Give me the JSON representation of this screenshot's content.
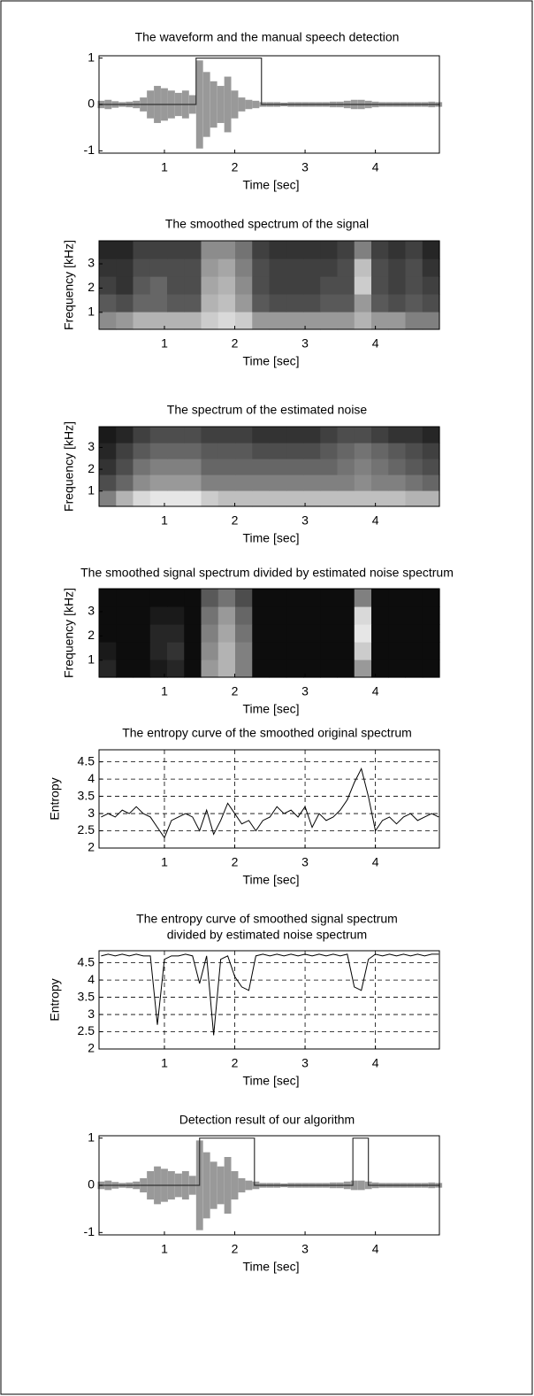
{
  "chart_data": [
    {
      "type": "waveform",
      "title": "The waveform and the manual speech detection",
      "xlabel": "Time [sec]",
      "xlim": [
        0.07,
        4.91
      ],
      "ylim": [
        -1.05,
        1.05
      ],
      "xticks": [
        1,
        2,
        3,
        4
      ],
      "yticks": [
        -1,
        0,
        1
      ],
      "x": [
        0.1,
        0.2,
        0.3,
        0.4,
        0.5,
        0.6,
        0.7,
        0.8,
        0.9,
        1.0,
        1.1,
        1.2,
        1.3,
        1.4,
        1.5,
        1.6,
        1.7,
        1.8,
        1.9,
        2.0,
        2.1,
        2.2,
        2.3,
        2.4,
        2.5,
        2.6,
        2.7,
        2.8,
        2.9,
        3.0,
        3.1,
        3.2,
        3.3,
        3.4,
        3.5,
        3.6,
        3.7,
        3.8,
        3.9,
        4.0,
        4.1,
        4.2,
        4.3,
        4.4,
        4.5,
        4.6,
        4.7,
        4.8,
        4.9
      ],
      "envelope": [
        0.08,
        0.1,
        0.07,
        0.05,
        0.06,
        0.08,
        0.15,
        0.3,
        0.4,
        0.35,
        0.3,
        0.25,
        0.3,
        0.2,
        0.95,
        0.7,
        0.5,
        0.4,
        0.6,
        0.3,
        0.15,
        0.1,
        0.08,
        0.05,
        0.05,
        0.05,
        0.04,
        0.05,
        0.05,
        0.05,
        0.05,
        0.05,
        0.05,
        0.06,
        0.06,
        0.08,
        0.1,
        0.1,
        0.08,
        0.06,
        0.05,
        0.05,
        0.05,
        0.05,
        0.05,
        0.05,
        0.05,
        0.06,
        0.05
      ],
      "envelope_color": "#999999",
      "detection": {
        "x": [
          0.07,
          1.45,
          1.45,
          2.38,
          2.38,
          4.91
        ],
        "values": [
          0,
          0,
          1,
          1,
          0,
          0
        ],
        "color": "#333333"
      }
    },
    {
      "type": "heatmap",
      "title": "The smoothed spectrum of the signal",
      "xlabel": "Time [sec]",
      "ylabel": "Frequency [kHz]",
      "xlim": [
        0.07,
        4.91
      ],
      "ylim": [
        0.3,
        3.95
      ],
      "xticks": [
        1,
        2,
        3,
        4
      ],
      "yticks": [
        1,
        2,
        3
      ],
      "colormap": "gray",
      "rows": [
        [
          0.55,
          0.6,
          0.7,
          0.7,
          0.7,
          0.7,
          0.8,
          0.85,
          0.8,
          0.6,
          0.6,
          0.6,
          0.6,
          0.6,
          0.6,
          0.7,
          0.6,
          0.6,
          0.5,
          0.5
        ],
        [
          0.35,
          0.3,
          0.4,
          0.4,
          0.35,
          0.35,
          0.7,
          0.75,
          0.6,
          0.35,
          0.3,
          0.3,
          0.3,
          0.35,
          0.35,
          0.6,
          0.35,
          0.3,
          0.35,
          0.3
        ],
        [
          0.25,
          0.2,
          0.35,
          0.4,
          0.3,
          0.3,
          0.65,
          0.7,
          0.55,
          0.3,
          0.25,
          0.25,
          0.25,
          0.3,
          0.3,
          0.8,
          0.3,
          0.25,
          0.3,
          0.25
        ],
        [
          0.2,
          0.2,
          0.3,
          0.3,
          0.3,
          0.3,
          0.6,
          0.65,
          0.5,
          0.3,
          0.25,
          0.25,
          0.25,
          0.25,
          0.3,
          0.75,
          0.3,
          0.25,
          0.3,
          0.2
        ],
        [
          0.15,
          0.15,
          0.25,
          0.25,
          0.25,
          0.25,
          0.55,
          0.55,
          0.45,
          0.25,
          0.2,
          0.2,
          0.2,
          0.2,
          0.25,
          0.5,
          0.25,
          0.2,
          0.25,
          0.15
        ]
      ]
    },
    {
      "type": "heatmap",
      "title": "The spectrum of the estimated noise",
      "xlabel": "Time [sec]",
      "ylabel": "Frequency [kHz]",
      "xlim": [
        0.07,
        4.91
      ],
      "ylim": [
        0.3,
        3.95
      ],
      "xticks": [
        1,
        2,
        3,
        4
      ],
      "yticks": [
        1,
        2,
        3
      ],
      "colormap": "gray",
      "rows": [
        [
          0.5,
          0.7,
          0.85,
          0.9,
          0.9,
          0.9,
          0.8,
          0.75,
          0.75,
          0.75,
          0.75,
          0.75,
          0.75,
          0.75,
          0.75,
          0.75,
          0.75,
          0.75,
          0.7,
          0.7
        ],
        [
          0.3,
          0.4,
          0.55,
          0.6,
          0.6,
          0.6,
          0.5,
          0.5,
          0.5,
          0.5,
          0.5,
          0.5,
          0.5,
          0.5,
          0.5,
          0.55,
          0.5,
          0.5,
          0.45,
          0.4
        ],
        [
          0.2,
          0.3,
          0.45,
          0.5,
          0.5,
          0.5,
          0.4,
          0.4,
          0.4,
          0.4,
          0.4,
          0.4,
          0.4,
          0.4,
          0.45,
          0.5,
          0.45,
          0.4,
          0.35,
          0.3
        ],
        [
          0.15,
          0.25,
          0.35,
          0.4,
          0.4,
          0.4,
          0.35,
          0.35,
          0.35,
          0.3,
          0.3,
          0.3,
          0.3,
          0.35,
          0.4,
          0.45,
          0.4,
          0.35,
          0.3,
          0.25
        ],
        [
          0.1,
          0.15,
          0.25,
          0.3,
          0.3,
          0.3,
          0.25,
          0.25,
          0.25,
          0.2,
          0.2,
          0.2,
          0.2,
          0.25,
          0.3,
          0.3,
          0.25,
          0.2,
          0.2,
          0.15
        ]
      ]
    },
    {
      "type": "heatmap",
      "title": "The smoothed signal spectrum divided by estimated noise spectrum",
      "xlabel": "Time [sec]",
      "ylabel": "Frequency [kHz]",
      "xlim": [
        0.07,
        4.91
      ],
      "ylim": [
        0.3,
        3.95
      ],
      "xticks": [
        1,
        2,
        3,
        4
      ],
      "yticks": [
        1,
        2,
        3
      ],
      "colormap": "gray",
      "rows": [
        [
          0.15,
          0.05,
          0.05,
          0.1,
          0.15,
          0.05,
          0.6,
          0.7,
          0.5,
          0.05,
          0.05,
          0.05,
          0.05,
          0.05,
          0.05,
          0.6,
          0.05,
          0.05,
          0.05,
          0.05
        ],
        [
          0.1,
          0.05,
          0.05,
          0.15,
          0.2,
          0.05,
          0.55,
          0.7,
          0.5,
          0.05,
          0.05,
          0.05,
          0.05,
          0.05,
          0.05,
          0.8,
          0.05,
          0.05,
          0.05,
          0.05
        ],
        [
          0.05,
          0.05,
          0.05,
          0.15,
          0.15,
          0.05,
          0.5,
          0.65,
          0.45,
          0.05,
          0.05,
          0.05,
          0.05,
          0.05,
          0.05,
          0.9,
          0.05,
          0.05,
          0.05,
          0.05
        ],
        [
          0.05,
          0.05,
          0.05,
          0.1,
          0.1,
          0.05,
          0.45,
          0.6,
          0.4,
          0.05,
          0.05,
          0.05,
          0.05,
          0.05,
          0.05,
          0.85,
          0.05,
          0.05,
          0.05,
          0.05
        ],
        [
          0.05,
          0.05,
          0.05,
          0.05,
          0.05,
          0.05,
          0.35,
          0.45,
          0.3,
          0.05,
          0.05,
          0.05,
          0.05,
          0.05,
          0.05,
          0.5,
          0.05,
          0.05,
          0.05,
          0.05
        ]
      ]
    },
    {
      "type": "line",
      "title": "The entropy curve of the smoothed original spectrum",
      "xlabel": "Time [sec]",
      "ylabel": "Entropy",
      "xlim": [
        0.07,
        4.91
      ],
      "ylim": [
        2,
        4.85
      ],
      "xticks": [
        1,
        2,
        3,
        4
      ],
      "yticks": [
        2,
        2.5,
        3,
        3.5,
        4,
        4.5
      ],
      "grid": true,
      "color": "#000000",
      "x": [
        0.1,
        0.2,
        0.3,
        0.4,
        0.5,
        0.6,
        0.7,
        0.8,
        0.9,
        1.0,
        1.1,
        1.2,
        1.3,
        1.4,
        1.5,
        1.6,
        1.7,
        1.8,
        1.9,
        2.0,
        2.1,
        2.2,
        2.3,
        2.4,
        2.5,
        2.6,
        2.7,
        2.8,
        2.9,
        3.0,
        3.1,
        3.2,
        3.3,
        3.4,
        3.5,
        3.6,
        3.7,
        3.8,
        3.9,
        4.0,
        4.1,
        4.2,
        4.3,
        4.4,
        4.5,
        4.6,
        4.7,
        4.8,
        4.9
      ],
      "values": [
        2.9,
        3.0,
        2.9,
        3.1,
        3.0,
        3.2,
        3.0,
        2.9,
        2.6,
        2.3,
        2.8,
        2.9,
        3.0,
        2.9,
        2.5,
        3.1,
        2.4,
        2.8,
        3.3,
        3.0,
        2.7,
        2.8,
        2.5,
        2.8,
        2.9,
        3.2,
        3.0,
        3.1,
        2.9,
        3.2,
        2.6,
        3.0,
        2.8,
        2.9,
        3.1,
        3.4,
        3.9,
        4.3,
        3.5,
        2.5,
        2.8,
        2.9,
        2.7,
        2.9,
        3.0,
        2.8,
        2.9,
        3.0,
        2.9
      ]
    },
    {
      "type": "line",
      "title": [
        "The entropy curve of smoothed signal spectrum",
        "divided by estimated noise spectrum"
      ],
      "xlabel": "Time [sec]",
      "ylabel": "Entropy",
      "xlim": [
        0.07,
        4.91
      ],
      "ylim": [
        2,
        4.85
      ],
      "xticks": [
        1,
        2,
        3,
        4
      ],
      "yticks": [
        2,
        2.5,
        3,
        3.5,
        4,
        4.5
      ],
      "grid": true,
      "color": "#000000",
      "x": [
        0.1,
        0.2,
        0.3,
        0.4,
        0.5,
        0.6,
        0.7,
        0.8,
        0.9,
        1.0,
        1.1,
        1.2,
        1.3,
        1.4,
        1.5,
        1.6,
        1.7,
        1.8,
        1.9,
        2.0,
        2.1,
        2.2,
        2.3,
        2.4,
        2.5,
        2.6,
        2.7,
        2.8,
        2.9,
        3.0,
        3.1,
        3.2,
        3.3,
        3.4,
        3.5,
        3.6,
        3.7,
        3.8,
        3.9,
        4.0,
        4.1,
        4.2,
        4.3,
        4.4,
        4.5,
        4.6,
        4.7,
        4.8,
        4.9
      ],
      "values": [
        4.7,
        4.75,
        4.7,
        4.75,
        4.7,
        4.75,
        4.7,
        4.7,
        2.7,
        4.6,
        4.7,
        4.7,
        4.75,
        4.7,
        3.9,
        4.7,
        2.4,
        4.6,
        4.7,
        4.1,
        3.8,
        3.7,
        4.7,
        4.75,
        4.7,
        4.75,
        4.7,
        4.75,
        4.7,
        4.75,
        4.7,
        4.75,
        4.7,
        4.75,
        4.7,
        4.75,
        3.8,
        3.7,
        4.6,
        4.75,
        4.7,
        4.75,
        4.7,
        4.75,
        4.7,
        4.75,
        4.7,
        4.75,
        4.75
      ]
    },
    {
      "type": "waveform",
      "title": "Detection result of our algorithm",
      "xlabel": "Time [sec]",
      "xlim": [
        0.07,
        4.91
      ],
      "ylim": [
        -1.05,
        1.05
      ],
      "xticks": [
        1,
        2,
        3,
        4
      ],
      "yticks": [
        -1,
        0,
        1
      ],
      "x": [
        0.1,
        0.2,
        0.3,
        0.4,
        0.5,
        0.6,
        0.7,
        0.8,
        0.9,
        1.0,
        1.1,
        1.2,
        1.3,
        1.4,
        1.5,
        1.6,
        1.7,
        1.8,
        1.9,
        2.0,
        2.1,
        2.2,
        2.3,
        2.4,
        2.5,
        2.6,
        2.7,
        2.8,
        2.9,
        3.0,
        3.1,
        3.2,
        3.3,
        3.4,
        3.5,
        3.6,
        3.7,
        3.8,
        3.9,
        4.0,
        4.1,
        4.2,
        4.3,
        4.4,
        4.5,
        4.6,
        4.7,
        4.8,
        4.9
      ],
      "envelope": [
        0.08,
        0.1,
        0.07,
        0.05,
        0.06,
        0.08,
        0.15,
        0.3,
        0.4,
        0.35,
        0.3,
        0.25,
        0.3,
        0.2,
        0.95,
        0.7,
        0.5,
        0.4,
        0.6,
        0.3,
        0.15,
        0.1,
        0.08,
        0.05,
        0.05,
        0.05,
        0.04,
        0.05,
        0.05,
        0.05,
        0.05,
        0.05,
        0.05,
        0.06,
        0.06,
        0.08,
        0.1,
        0.1,
        0.08,
        0.06,
        0.05,
        0.05,
        0.05,
        0.05,
        0.05,
        0.05,
        0.05,
        0.06,
        0.05
      ],
      "envelope_color": "#999999",
      "detection": {
        "x": [
          0.07,
          1.5,
          1.5,
          2.28,
          2.28,
          3.68,
          3.68,
          3.9,
          3.9,
          4.91
        ],
        "values": [
          0,
          0,
          1,
          1,
          0,
          0,
          1,
          1,
          0,
          0
        ],
        "color": "#333333"
      }
    }
  ]
}
